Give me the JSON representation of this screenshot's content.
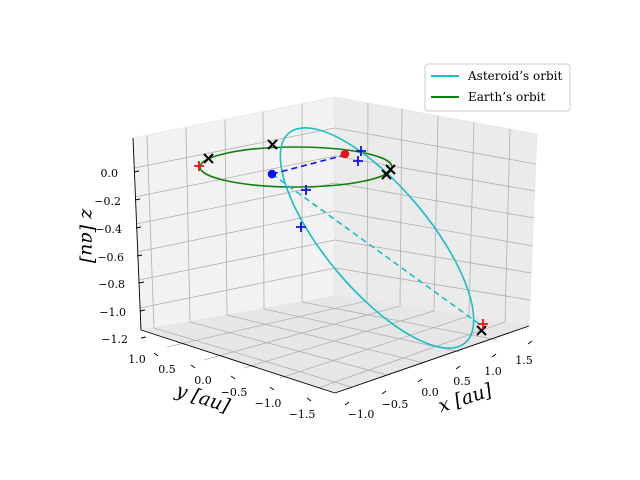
{
  "chart_data": {
    "type": "3d-line",
    "title": "",
    "axes": {
      "x": {
        "label": "x [au]",
        "ticks": [
          "−1.0",
          "−0.5",
          "0.0",
          "0.5",
          "1.0",
          "1.5"
        ]
      },
      "y": {
        "label": "y [au]",
        "ticks": [
          "1.0",
          "0.5",
          "0.0",
          "−0.5",
          "−1.0",
          "−1.5"
        ]
      },
      "z": {
        "label": "z [au]",
        "ticks": [
          "0.0",
          "−0.2",
          "−0.4",
          "−0.6",
          "−0.8",
          "−1.0",
          "−1.2"
        ]
      }
    },
    "legend": {
      "position": "top-right",
      "entries": [
        {
          "name": "Asteroid’s orbit",
          "color": "#17bfc6"
        },
        {
          "name": "Earth’s orbit",
          "color": "#118011"
        }
      ]
    },
    "series": [
      {
        "name": "Asteroid’s orbit",
        "color": "#17bfc6",
        "style": "solid ellipse, tilted"
      },
      {
        "name": "Earth’s orbit",
        "color": "#118011",
        "style": "solid ellipse at z = 0"
      },
      {
        "name": "node line",
        "color": "#17bfc6",
        "style": "dashed"
      },
      {
        "name": "Earth–asteroid line",
        "color": "#1010ee",
        "style": "dashed"
      }
    ],
    "markers": {
      "red_dots": 1,
      "blue_dots": 1,
      "black_x": 5,
      "red_plus": 2,
      "blue_plus": 5
    },
    "colors": {
      "asteroid": "#17bfc6",
      "earth": "#118011",
      "dash_blue": "#1010ee",
      "red": "#ee1111",
      "black": "#000000"
    }
  }
}
